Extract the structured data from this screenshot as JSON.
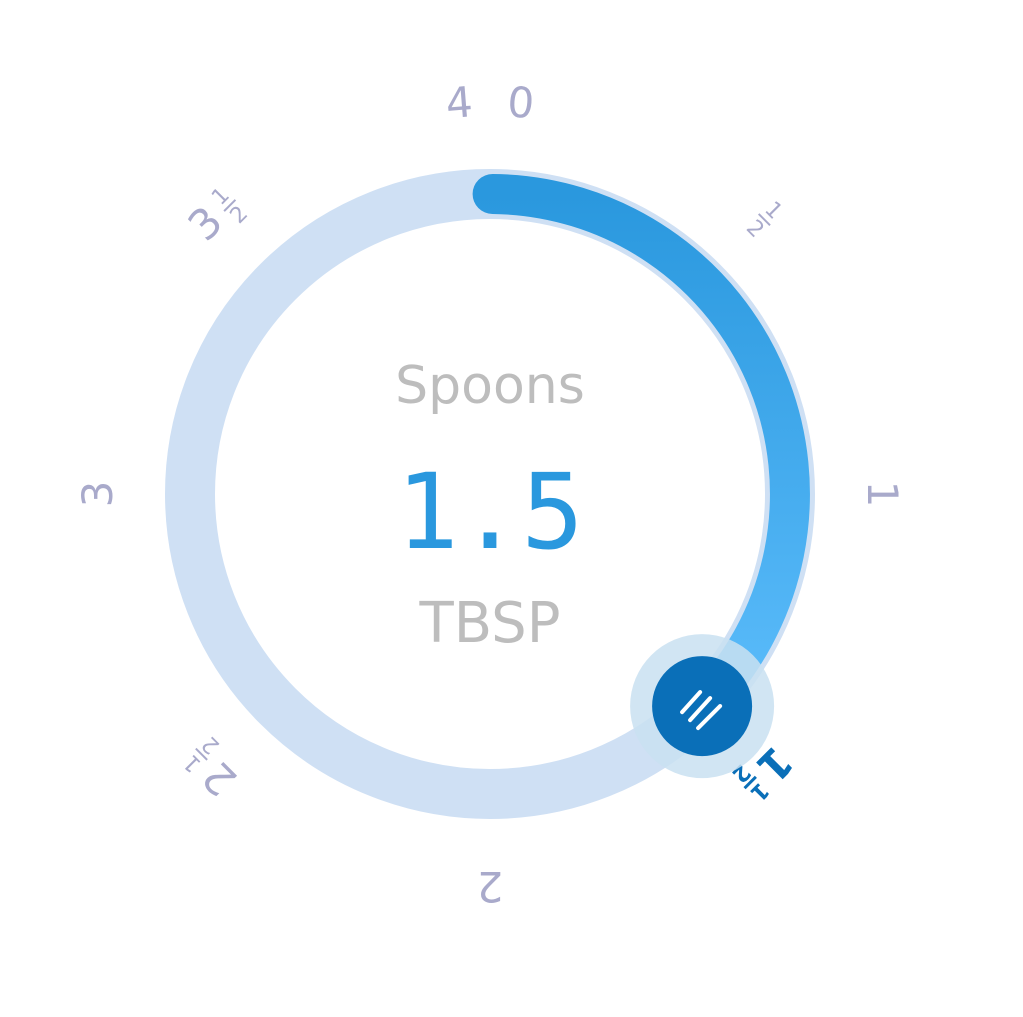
{
  "dial": {
    "title": "Spoons",
    "value_text": "1.5",
    "unit": "TBSP",
    "value": 1.5,
    "min": 0,
    "max": 4,
    "ticks": [
      {
        "whole": "0",
        "num": "",
        "den": ""
      },
      {
        "whole": "",
        "num": "1",
        "den": "2"
      },
      {
        "whole": "1",
        "num": "",
        "den": ""
      },
      {
        "whole": "1",
        "num": "1",
        "den": "2"
      },
      {
        "whole": "2",
        "num": "",
        "den": ""
      },
      {
        "whole": "2",
        "num": "1",
        "den": "2"
      },
      {
        "whole": "3",
        "num": "",
        "den": ""
      },
      {
        "whole": "3",
        "num": "1",
        "den": "2"
      },
      {
        "whole": "4",
        "num": "",
        "den": ""
      }
    ],
    "tick_values": [
      0,
      0.5,
      1,
      1.5,
      2,
      2.5,
      3,
      3.5,
      4
    ],
    "handle_icon": "grip-lines-icon",
    "colors": {
      "track": "#cfe0f4",
      "arc_start": "#2a98de",
      "arc_end": "#5bbcfb",
      "handle": "#0a6fb8",
      "handle_halo": "#c9e1f1",
      "tick": "#a9aacb",
      "tick_active": "#0a6fb8",
      "value": "#2a98de",
      "title": "#bdbdbd",
      "unit": "#bdbdbd"
    }
  }
}
